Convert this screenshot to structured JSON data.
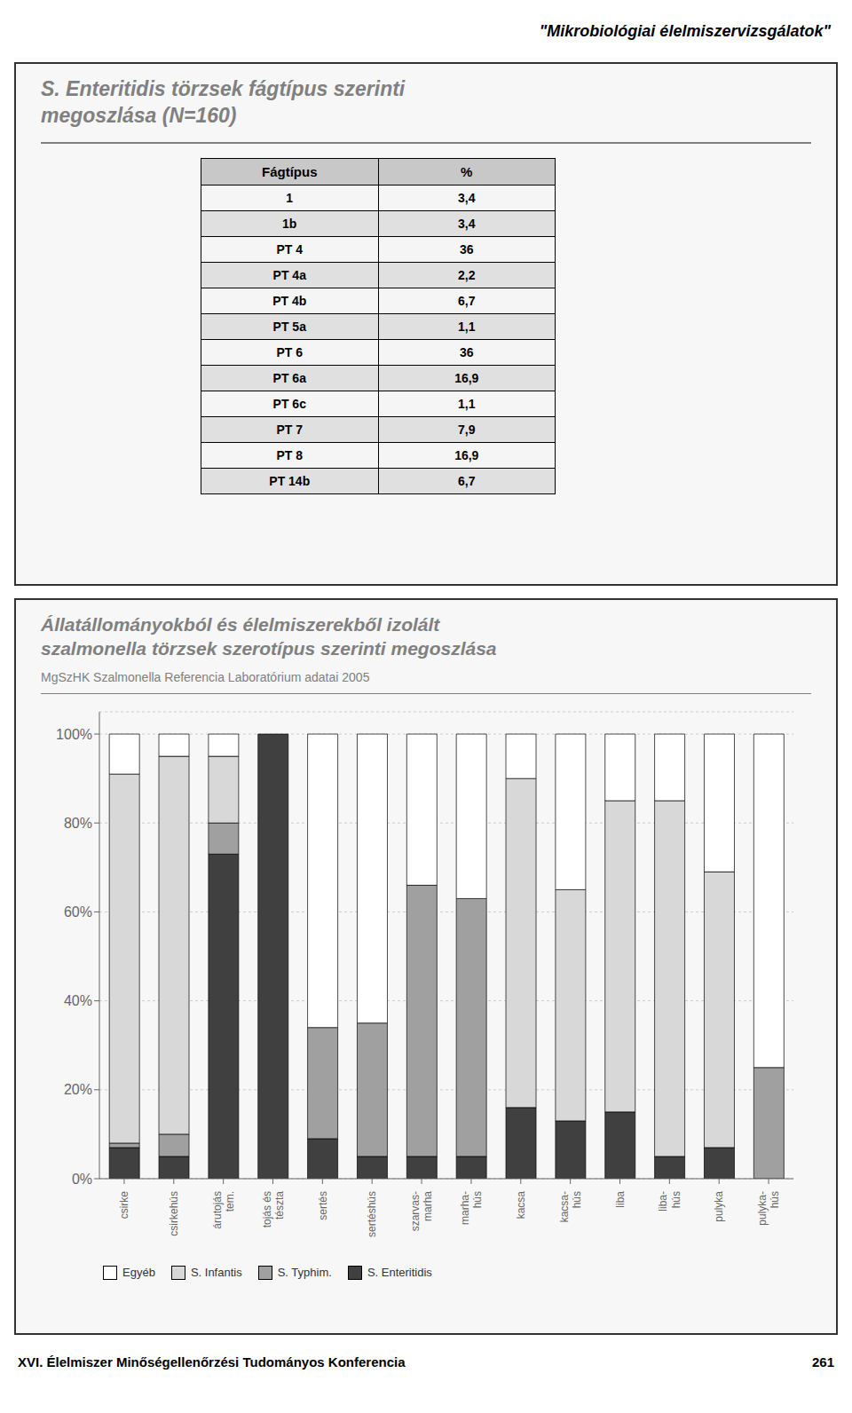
{
  "chart_data": {
    "type": "bar",
    "stacked": true,
    "title": "Állatállományokból és élelmiszerekből izolált\nszalmonella törzsek szerotípus szerinti megoszlása",
    "subtitle": "MgSzHK Szalmonella Referencia Laboratórium adatai 2005",
    "categories": [
      "csirke",
      "csirkehús",
      "árutojás\ntem.",
      "tojás és\ntészta",
      "sertés",
      "sertéshús",
      "szarvas-\nmarha",
      "marha-\nhús",
      "kacsa",
      "kacsa-\nhús",
      "liba",
      "liba-\nhús",
      "pulyka",
      "pulyka-\nhús"
    ],
    "series": [
      {
        "name": "S. Enteritidis",
        "color": "#404040",
        "values": [
          7,
          5,
          73,
          100,
          9,
          5,
          5,
          5,
          16,
          13,
          15,
          5,
          7,
          0
        ]
      },
      {
        "name": "S. Typhim.",
        "color": "#A0A0A0",
        "values": [
          1,
          5,
          7,
          0,
          25,
          30,
          61,
          58,
          0,
          0,
          0,
          0,
          0,
          25
        ]
      },
      {
        "name": "S. Infantis",
        "color": "#D8D8D8",
        "values": [
          83,
          85,
          15,
          0,
          0,
          0,
          0,
          0,
          74,
          52,
          70,
          80,
          62,
          0
        ]
      },
      {
        "name": "Egyéb",
        "color": "#FFFFFF",
        "values": [
          9,
          5,
          5,
          0,
          66,
          65,
          34,
          37,
          10,
          35,
          15,
          15,
          31,
          75
        ]
      }
    ],
    "ylim": [
      0,
      105
    ],
    "yticks": [
      {
        "value": 0,
        "label": "0%"
      },
      {
        "value": 20,
        "label": "20%"
      },
      {
        "value": 40,
        "label": "40%"
      },
      {
        "value": 60,
        "label": "60%"
      },
      {
        "value": 80,
        "label": "80%"
      },
      {
        "value": 100,
        "label": "100%"
      }
    ],
    "grid": true,
    "legend": "lower left",
    "annotations": [
      "\"Mikrobiológiai élelmiszervizsgálatok\"",
      "XVI. Élelmiszer Minőségellenőrzési Tudományos Konferencia",
      "261"
    ]
  },
  "table": {
    "title": "S. Enteritidis törzsek fágtípus szerinti\nmegoszlása (N=160)",
    "headers": [
      "Fágtípus",
      "%"
    ],
    "rows": [
      [
        "1",
        "3,4"
      ],
      [
        "1b",
        "3,4"
      ],
      [
        "PT 4",
        "36"
      ],
      [
        "PT 4a",
        "2,2"
      ],
      [
        "PT 4b",
        "6,7"
      ],
      [
        "PT 5a",
        "1,1"
      ],
      [
        "PT 6",
        "36"
      ],
      [
        "PT 6a",
        "16,9"
      ],
      [
        "PT 6c",
        "1,1"
      ],
      [
        "PT 7",
        "7,9"
      ],
      [
        "PT 8",
        "16,9"
      ],
      [
        "PT 14b",
        "6,7"
      ]
    ]
  }
}
